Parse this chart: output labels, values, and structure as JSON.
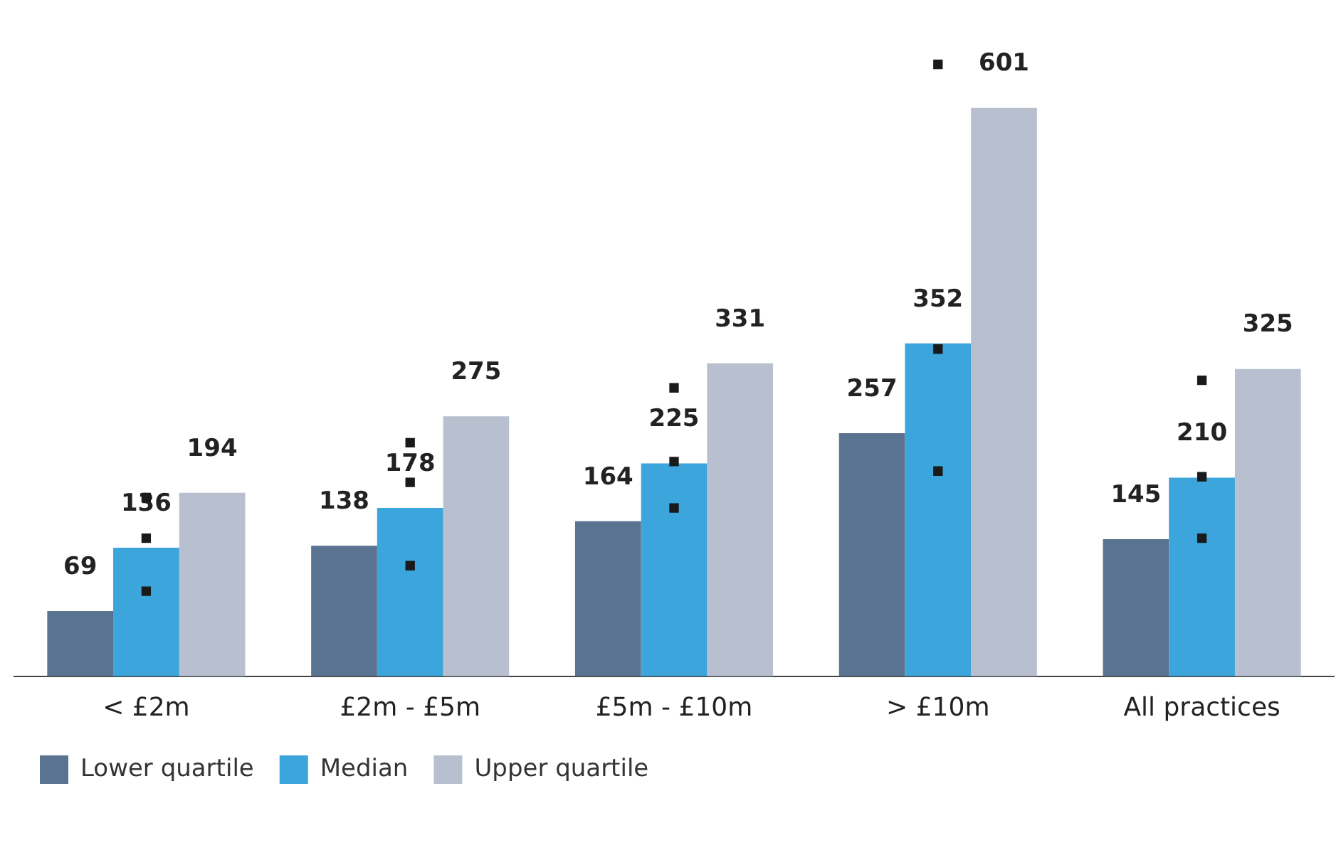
{
  "chart_data": {
    "type": "bar",
    "categories": [
      "< £2m",
      "£2m - £5m",
      "£5m - £10m",
      "> £10m",
      "All practices"
    ],
    "series": [
      {
        "name": "Lower quartile",
        "color": "#5a7391",
        "values": [
          69,
          138,
          164,
          257,
          145
        ],
        "value_labels": [
          "69",
          "138",
          "164",
          "257",
          "145"
        ]
      },
      {
        "name": "Median",
        "color": "#3ba5dc",
        "values": [
          136,
          178,
          225,
          352,
          210
        ],
        "value_labels": [
          "136",
          "178",
          "225",
          "352",
          "210"
        ]
      },
      {
        "name": "Upper quartile",
        "color": "#b8bfcf",
        "values": [
          194,
          275,
          331,
          601,
          325
        ],
        "value_labels": [
          "194",
          "275",
          "331",
          "601",
          "325"
        ]
      },
      {
        "type": "scatter",
        "color": "#1a1a1a",
        "values": [
          90,
          117,
          178,
          217,
          146
        ]
      },
      {
        "type": "scatter",
        "color": "#1a1a1a",
        "values": [
          146,
          205,
          227,
          346,
          211
        ]
      },
      {
        "type": "scatter",
        "color": "#1a1a1a",
        "values": [
          189,
          247,
          305,
          647,
          313
        ]
      }
    ],
    "legend": "bottom left",
    "grid": false,
    "tick_labels": "x",
    "marker": "square"
  }
}
